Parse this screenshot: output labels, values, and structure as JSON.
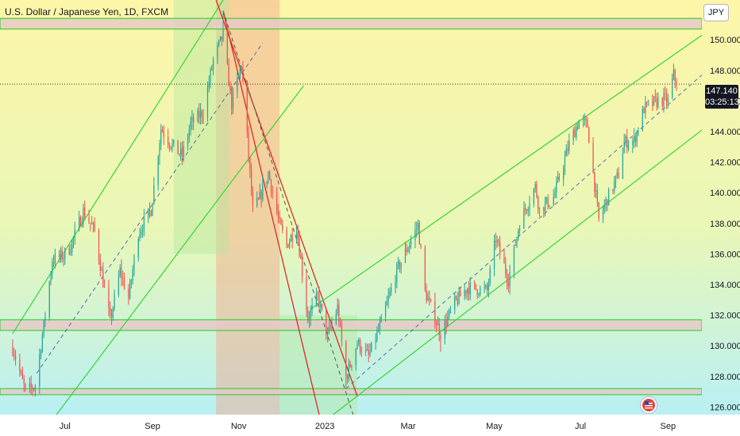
{
  "header": {
    "title": "U.S. Dollar / Japanese Yen, 1D, FXCM"
  },
  "currency_button": "JPY",
  "price_label": {
    "price": "147.140",
    "countdown": "03:25:13"
  },
  "colors": {
    "bg_top": "#fdf6a8",
    "bg_bottom": "#b9f0f4",
    "up": "#26a69a",
    "down": "#ef5350",
    "channel_up": "#34d634",
    "channel_down": "#e01b1b",
    "zone_fill": "#e6c8c8",
    "zone_border": "#22cc22"
  },
  "chart_data": {
    "type": "candlestick",
    "title": "U.S. Dollar / Japanese Yen, 1D, FXCM",
    "y_unit": "JPY",
    "ylim": [
      125.5,
      152.6
    ],
    "y_ticks": [
      {
        "value": 150,
        "label": "150.000"
      },
      {
        "value": 148,
        "label": "148.000"
      },
      {
        "value": 146,
        "label": "146.000"
      },
      {
        "value": 144,
        "label": "144.000"
      },
      {
        "value": 142,
        "label": "142.000"
      },
      {
        "value": 140,
        "label": "140.000"
      },
      {
        "value": 138,
        "label": "138.000"
      },
      {
        "value": 136,
        "label": "136.000"
      },
      {
        "value": 134,
        "label": "134.000"
      },
      {
        "value": 132,
        "label": "132.000"
      },
      {
        "value": 130,
        "label": "130.000"
      },
      {
        "value": 128,
        "label": "128.000"
      },
      {
        "value": 126,
        "label": "126.000"
      }
    ],
    "x_ticks": [
      {
        "date": "2022-07-01",
        "label": "Jul"
      },
      {
        "date": "2022-09-01",
        "label": "Sep"
      },
      {
        "date": "2022-11-01",
        "label": "Nov"
      },
      {
        "date": "2023-01-01",
        "label": "2023"
      },
      {
        "date": "2023-03-01",
        "label": "Mar"
      },
      {
        "date": "2023-05-01",
        "label": "May"
      },
      {
        "date": "2023-07-01",
        "label": "Jul"
      },
      {
        "date": "2023-09-01",
        "label": "Sep"
      }
    ],
    "last_price": 147.14,
    "path": [
      [
        "2022-05-25",
        129.9
      ],
      [
        "2022-06-03",
        127.0
      ],
      [
        "2022-06-10",
        127.4
      ],
      [
        "2022-06-17",
        132.0
      ],
      [
        "2022-06-22",
        135.6
      ],
      [
        "2022-06-30",
        135.9
      ],
      [
        "2022-07-05",
        136.5
      ],
      [
        "2022-07-14",
        138.8
      ],
      [
        "2022-07-22",
        137.5
      ],
      [
        "2022-07-28",
        134.2
      ],
      [
        "2022-08-02",
        131.6
      ],
      [
        "2022-08-09",
        134.9
      ],
      [
        "2022-08-15",
        133.1
      ],
      [
        "2022-08-22",
        137.4
      ],
      [
        "2022-08-31",
        138.9
      ],
      [
        "2022-09-07",
        144.2
      ],
      [
        "2022-09-14",
        143.2
      ],
      [
        "2022-09-22",
        142.4
      ],
      [
        "2022-09-28",
        144.5
      ],
      [
        "2022-10-07",
        145.3
      ],
      [
        "2022-10-14",
        148.7
      ],
      [
        "2022-10-21",
        150.3
      ],
      [
        "2022-10-27",
        145.8
      ],
      [
        "2022-11-03",
        148.4
      ],
      [
        "2022-11-11",
        138.8
      ],
      [
        "2022-11-15",
        139.4
      ],
      [
        "2022-11-22",
        141.3
      ],
      [
        "2022-11-30",
        137.9
      ],
      [
        "2022-12-05",
        136.6
      ],
      [
        "2022-12-12",
        137.8
      ],
      [
        "2022-12-20",
        131.8
      ],
      [
        "2022-12-27",
        133.2
      ],
      [
        "2023-01-03",
        130.6
      ],
      [
        "2023-01-10",
        132.5
      ],
      [
        "2023-01-16",
        127.9
      ],
      [
        "2023-01-24",
        130.2
      ],
      [
        "2023-02-01",
        129.3
      ],
      [
        "2023-02-10",
        131.5
      ],
      [
        "2023-02-21",
        134.9
      ],
      [
        "2023-03-02",
        136.7
      ],
      [
        "2023-03-08",
        137.9
      ],
      [
        "2023-03-13",
        133.5
      ],
      [
        "2023-03-24",
        130.8
      ],
      [
        "2023-04-03",
        132.8
      ],
      [
        "2023-04-12",
        133.8
      ],
      [
        "2023-04-26",
        133.6
      ],
      [
        "2023-05-02",
        137.0
      ],
      [
        "2023-05-11",
        134.3
      ],
      [
        "2023-05-19",
        138.1
      ],
      [
        "2023-05-30",
        140.4
      ],
      [
        "2023-06-02",
        138.9
      ],
      [
        "2023-06-12",
        139.7
      ],
      [
        "2023-06-23",
        143.2
      ],
      [
        "2023-06-30",
        144.7
      ],
      [
        "2023-07-06",
        144.4
      ],
      [
        "2023-07-14",
        138.2
      ],
      [
        "2023-07-20",
        139.6
      ],
      [
        "2023-07-28",
        141.2
      ],
      [
        "2023-08-01",
        143.3
      ],
      [
        "2023-08-08",
        143.4
      ],
      [
        "2023-08-15",
        145.5
      ],
      [
        "2023-08-22",
        145.9
      ],
      [
        "2023-08-29",
        146.1
      ],
      [
        "2023-09-01",
        146.0
      ],
      [
        "2023-09-05",
        147.7
      ],
      [
        "2023-09-07",
        147.14
      ]
    ],
    "extremes": [
      {
        "date": "2022-10-21",
        "value": 151.9
      },
      {
        "date": "2022-10-27",
        "value": 145.1
      },
      {
        "date": "2023-01-16",
        "value": 127.2
      },
      {
        "date": "2023-03-24",
        "value": 129.6
      }
    ],
    "support_resistance_zones": [
      {
        "y1": 150.7,
        "y2": 151.4
      },
      {
        "y1": 131.0,
        "y2": 131.7
      },
      {
        "y1": 126.8,
        "y2": 127.2
      }
    ],
    "horizontal_lines": [
      147.1
    ],
    "channels": [
      {
        "name": "rising-channel-2022",
        "color": "green",
        "upper": [
          [
            "2022-05-25",
            130.8
          ],
          [
            "2022-10-21",
            152.6
          ]
        ],
        "lower": [
          [
            "2022-06-25",
            125.5
          ],
          [
            "2022-12-17",
            147.0
          ]
        ],
        "mid": [
          [
            "2022-06-11",
            128.2
          ],
          [
            "2022-11-18",
            149.8
          ]
        ]
      },
      {
        "name": "falling-channel",
        "color": "red",
        "upper": [
          [
            "2022-10-16",
            152.6
          ],
          [
            "2023-01-24",
            126.7
          ]
        ],
        "lower": [
          [
            "2022-10-21",
            151.9
          ],
          [
            "2022-12-28",
            125.5
          ]
        ],
        "mid": [
          [
            "2022-10-21",
            151.9
          ],
          [
            "2023-01-21",
            125.5
          ]
        ]
      },
      {
        "name": "rising-channel-2023",
        "color": "green",
        "upper": [
          [
            "2022-12-22",
            132.4
          ],
          [
            "2023-09-25",
            150.3
          ]
        ],
        "lower": [
          [
            "2023-01-07",
            125.5
          ],
          [
            "2023-09-25",
            144.1
          ]
        ],
        "mid": [
          [
            "2023-01-16",
            127.2
          ],
          [
            "2023-09-25",
            147.7
          ]
        ]
      }
    ],
    "highlight_boxes": [
      {
        "date1": "2022-10-16",
        "date2": "2022-11-30",
        "y1": 152.6,
        "y2": 125.5,
        "color": "red"
      },
      {
        "date1": "2022-11-30",
        "date2": "2023-01-24",
        "y1": 132.0,
        "y2": 125.5,
        "color": "green"
      },
      {
        "date1": "2022-09-16",
        "date2": "2022-10-25",
        "y1": 152.6,
        "y2": 136.0,
        "color": "green"
      }
    ]
  }
}
